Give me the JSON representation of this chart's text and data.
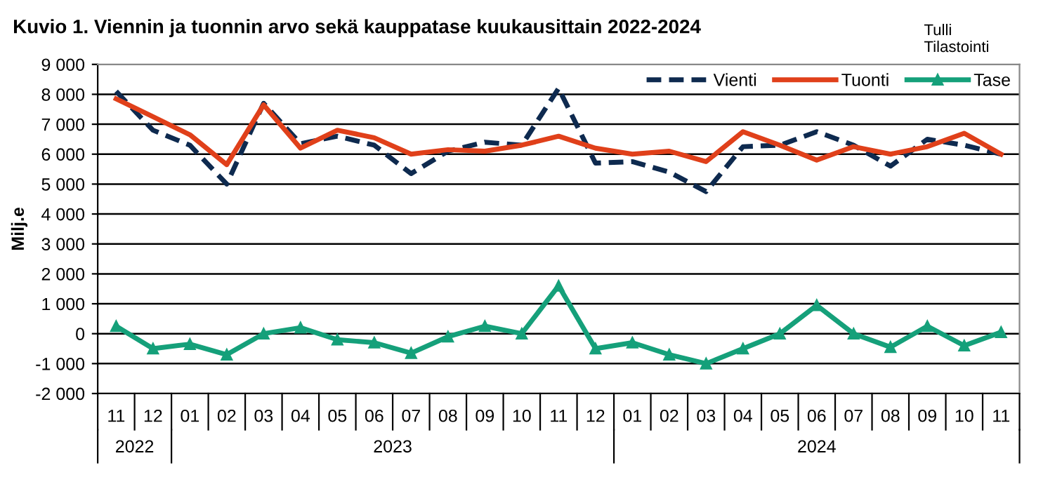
{
  "chart_data": {
    "type": "line",
    "title": "Kuvio 1. Viennin ja tuonnin arvo sekä kauppatase kuukausittain 2022-2024",
    "ylabel": "Milj.e",
    "categories": [
      "11",
      "12",
      "01",
      "02",
      "03",
      "04",
      "05",
      "06",
      "07",
      "08",
      "09",
      "10",
      "11",
      "12",
      "01",
      "02",
      "03",
      "04",
      "05",
      "06",
      "07",
      "08",
      "09",
      "10",
      "11"
    ],
    "series": [
      {
        "name": "Vienti",
        "color": "#0e2a4f",
        "line_style": "dashed",
        "marker": "none",
        "values": [
          8100,
          6800,
          6300,
          5000,
          7700,
          6350,
          6600,
          6300,
          5350,
          6100,
          6400,
          6300,
          8200,
          5700,
          5750,
          5400,
          4750,
          6250,
          6300,
          6750,
          6300,
          5600,
          6500,
          6300,
          6000
        ]
      },
      {
        "name": "Tuonti",
        "color": "#e0401a",
        "line_style": "solid",
        "marker": "none",
        "values": [
          7850,
          7250,
          6650,
          5650,
          7650,
          6200,
          6800,
          6550,
          6000,
          6150,
          6100,
          6300,
          6600,
          6200,
          6000,
          6100,
          5750,
          6750,
          6300,
          5800,
          6250,
          6000,
          6250,
          6700,
          6000
        ]
      },
      {
        "name": "Tase",
        "color": "#15a07a",
        "line_style": "solid",
        "marker": "triangle",
        "values": [
          250,
          -500,
          -350,
          -700,
          0,
          200,
          -200,
          -300,
          -650,
          -100,
          250,
          0,
          1600,
          -500,
          -300,
          -700,
          -1000,
          -500,
          0,
          950,
          0,
          -450,
          250,
          -400,
          50
        ]
      }
    ],
    "ylim": [
      -2000,
      9000
    ],
    "yticks": [
      {
        "value": -2000,
        "label": "-2 000"
      },
      {
        "value": -1000,
        "label": "-1 000"
      },
      0,
      {
        "value": 1000,
        "label": "1 000"
      },
      {
        "value": 2000,
        "label": "2 000"
      },
      {
        "value": 3000,
        "label": "3 000"
      },
      {
        "value": 4000,
        "label": "4 000"
      },
      {
        "value": 5000,
        "label": "5 000"
      },
      {
        "value": 6000,
        "label": "6 000"
      },
      {
        "value": 7000,
        "label": "7 000"
      },
      {
        "value": 8000,
        "label": "8 000"
      },
      {
        "value": 9000,
        "label": "9 000"
      }
    ],
    "grid": "y",
    "legend": "top right",
    "annotations": [
      "2022",
      "2023",
      "2024",
      "Tulli\nTilastointi"
    ]
  }
}
